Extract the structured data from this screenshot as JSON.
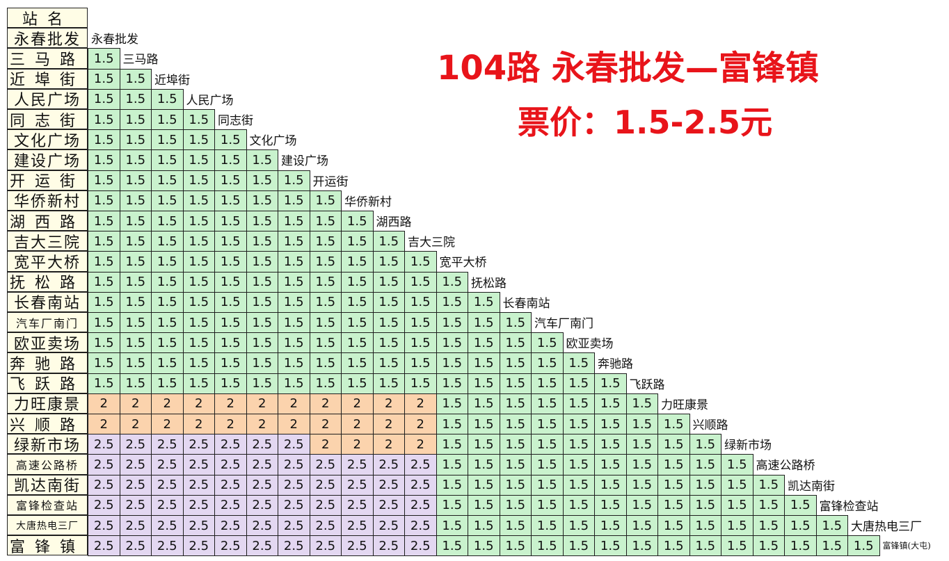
{
  "header_label": "站名",
  "title": "104路    永春批发—富锋镇",
  "fare_line": "票价：1.5-2.5元",
  "colors": {
    "green": "#c9f2cd",
    "orange": "#fbd3ad",
    "purple": "#e3d7f1",
    "header_bg": "#fffde6",
    "title_red": "#e8141a"
  },
  "stations": [
    {
      "label": "永春批发",
      "diag": "永春批发"
    },
    {
      "label": "三马路",
      "diag": "三马路"
    },
    {
      "label": "近埠街",
      "diag": "近埠街"
    },
    {
      "label": "人民广场",
      "diag": "人民广场"
    },
    {
      "label": "同志街",
      "diag": "同志街"
    },
    {
      "label": "文化广场",
      "diag": "文化广场"
    },
    {
      "label": "建设广场",
      "diag": "建设广场"
    },
    {
      "label": "开运街",
      "diag": "开运街"
    },
    {
      "label": "华侨新村",
      "diag": "华侨新村"
    },
    {
      "label": "湖西路",
      "diag": "湖西路"
    },
    {
      "label": "吉大三院",
      "diag": "吉大三院"
    },
    {
      "label": "宽平大桥",
      "diag": "宽平大桥"
    },
    {
      "label": "抚松路",
      "diag": "抚松路"
    },
    {
      "label": "长春南站",
      "diag": "长春南站"
    },
    {
      "label": "汽车厂南门",
      "diag": "汽车厂南门"
    },
    {
      "label": "欧亚卖场",
      "diag": "欧亚卖场"
    },
    {
      "label": "奔驰路",
      "diag": "奔驰路"
    },
    {
      "label": "飞跃路",
      "diag": "飞跃路"
    },
    {
      "label": "力旺康景",
      "diag": "力旺康景"
    },
    {
      "label": "兴顺路",
      "diag": "兴顺路"
    },
    {
      "label": "绿新市场",
      "diag": "绿新市场"
    },
    {
      "label": "高速公路桥",
      "diag": "高速公路桥"
    },
    {
      "label": "凯达南街",
      "diag": "凯达南街"
    },
    {
      "label": "富锋检查站",
      "diag": "富锋检查站"
    },
    {
      "label": "大唐热电三厂",
      "diag": "大唐热电三厂"
    },
    {
      "label": "富锋镇",
      "diag": "富锋镇(大屯)"
    }
  ],
  "fares": [
    [],
    [
      "1.5"
    ],
    [
      "1.5",
      "1.5"
    ],
    [
      "1.5",
      "1.5",
      "1.5"
    ],
    [
      "1.5",
      "1.5",
      "1.5",
      "1.5"
    ],
    [
      "1.5",
      "1.5",
      "1.5",
      "1.5",
      "1.5"
    ],
    [
      "1.5",
      "1.5",
      "1.5",
      "1.5",
      "1.5",
      "1.5"
    ],
    [
      "1.5",
      "1.5",
      "1.5",
      "1.5",
      "1.5",
      "1.5",
      "1.5"
    ],
    [
      "1.5",
      "1.5",
      "1.5",
      "1.5",
      "1.5",
      "1.5",
      "1.5",
      "1.5"
    ],
    [
      "1.5",
      "1.5",
      "1.5",
      "1.5",
      "1.5",
      "1.5",
      "1.5",
      "1.5",
      "1.5"
    ],
    [
      "1.5",
      "1.5",
      "1.5",
      "1.5",
      "1.5",
      "1.5",
      "1.5",
      "1.5",
      "1.5",
      "1.5"
    ],
    [
      "1.5",
      "1.5",
      "1.5",
      "1.5",
      "1.5",
      "1.5",
      "1.5",
      "1.5",
      "1.5",
      "1.5",
      "1.5"
    ],
    [
      "1.5",
      "1.5",
      "1.5",
      "1.5",
      "1.5",
      "1.5",
      "1.5",
      "1.5",
      "1.5",
      "1.5",
      "1.5",
      "1.5"
    ],
    [
      "1.5",
      "1.5",
      "1.5",
      "1.5",
      "1.5",
      "1.5",
      "1.5",
      "1.5",
      "1.5",
      "1.5",
      "1.5",
      "1.5",
      "1.5"
    ],
    [
      "1.5",
      "1.5",
      "1.5",
      "1.5",
      "1.5",
      "1.5",
      "1.5",
      "1.5",
      "1.5",
      "1.5",
      "1.5",
      "1.5",
      "1.5",
      "1.5"
    ],
    [
      "1.5",
      "1.5",
      "1.5",
      "1.5",
      "1.5",
      "1.5",
      "1.5",
      "1.5",
      "1.5",
      "1.5",
      "1.5",
      "1.5",
      "1.5",
      "1.5",
      "1.5"
    ],
    [
      "1.5",
      "1.5",
      "1.5",
      "1.5",
      "1.5",
      "1.5",
      "1.5",
      "1.5",
      "1.5",
      "1.5",
      "1.5",
      "1.5",
      "1.5",
      "1.5",
      "1.5",
      "1.5"
    ],
    [
      "1.5",
      "1.5",
      "1.5",
      "1.5",
      "1.5",
      "1.5",
      "1.5",
      "1.5",
      "1.5",
      "1.5",
      "1.5",
      "1.5",
      "1.5",
      "1.5",
      "1.5",
      "1.5",
      "1.5"
    ],
    [
      "2",
      "2",
      "2",
      "2",
      "2",
      "2",
      "2",
      "2",
      "2",
      "2",
      "2",
      "1.5",
      "1.5",
      "1.5",
      "1.5",
      "1.5",
      "1.5",
      "1.5"
    ],
    [
      "2",
      "2",
      "2",
      "2",
      "2",
      "2",
      "2",
      "2",
      "2",
      "2",
      "2",
      "1.5",
      "1.5",
      "1.5",
      "1.5",
      "1.5",
      "1.5",
      "1.5",
      "1.5"
    ],
    [
      "2.5",
      "2.5",
      "2.5",
      "2.5",
      "2.5",
      "2.5",
      "2.5",
      "2",
      "2",
      "2",
      "2",
      "1.5",
      "1.5",
      "1.5",
      "1.5",
      "1.5",
      "1.5",
      "1.5",
      "1.5",
      "1.5"
    ],
    [
      "2.5",
      "2.5",
      "2.5",
      "2.5",
      "2.5",
      "2.5",
      "2.5",
      "2.5",
      "2.5",
      "2.5",
      "2.5",
      "1.5",
      "1.5",
      "1.5",
      "1.5",
      "1.5",
      "1.5",
      "1.5",
      "1.5",
      "1.5",
      "1.5"
    ],
    [
      "2.5",
      "2.5",
      "2.5",
      "2.5",
      "2.5",
      "2.5",
      "2.5",
      "2.5",
      "2.5",
      "2.5",
      "2.5",
      "1.5",
      "1.5",
      "1.5",
      "1.5",
      "1.5",
      "1.5",
      "1.5",
      "1.5",
      "1.5",
      "1.5",
      "1.5"
    ],
    [
      "2.5",
      "2.5",
      "2.5",
      "2.5",
      "2.5",
      "2.5",
      "2.5",
      "2.5",
      "2.5",
      "2.5",
      "2.5",
      "1.5",
      "1.5",
      "1.5",
      "1.5",
      "1.5",
      "1.5",
      "1.5",
      "1.5",
      "1.5",
      "1.5",
      "1.5",
      "1.5"
    ],
    [
      "2.5",
      "2.5",
      "2.5",
      "2.5",
      "2.5",
      "2.5",
      "2.5",
      "2.5",
      "2.5",
      "2.5",
      "2.5",
      "1.5",
      "1.5",
      "1.5",
      "1.5",
      "1.5",
      "1.5",
      "1.5",
      "1.5",
      "1.5",
      "1.5",
      "1.5",
      "1.5",
      "1.5"
    ],
    [
      "2.5",
      "2.5",
      "2.5",
      "2.5",
      "2.5",
      "2.5",
      "2.5",
      "2.5",
      "2.5",
      "2.5",
      "2.5",
      "1.5",
      "1.5",
      "1.5",
      "1.5",
      "1.5",
      "1.5",
      "1.5",
      "1.5",
      "1.5",
      "1.5",
      "1.5",
      "1.5",
      "1.5",
      "1.5"
    ]
  ]
}
